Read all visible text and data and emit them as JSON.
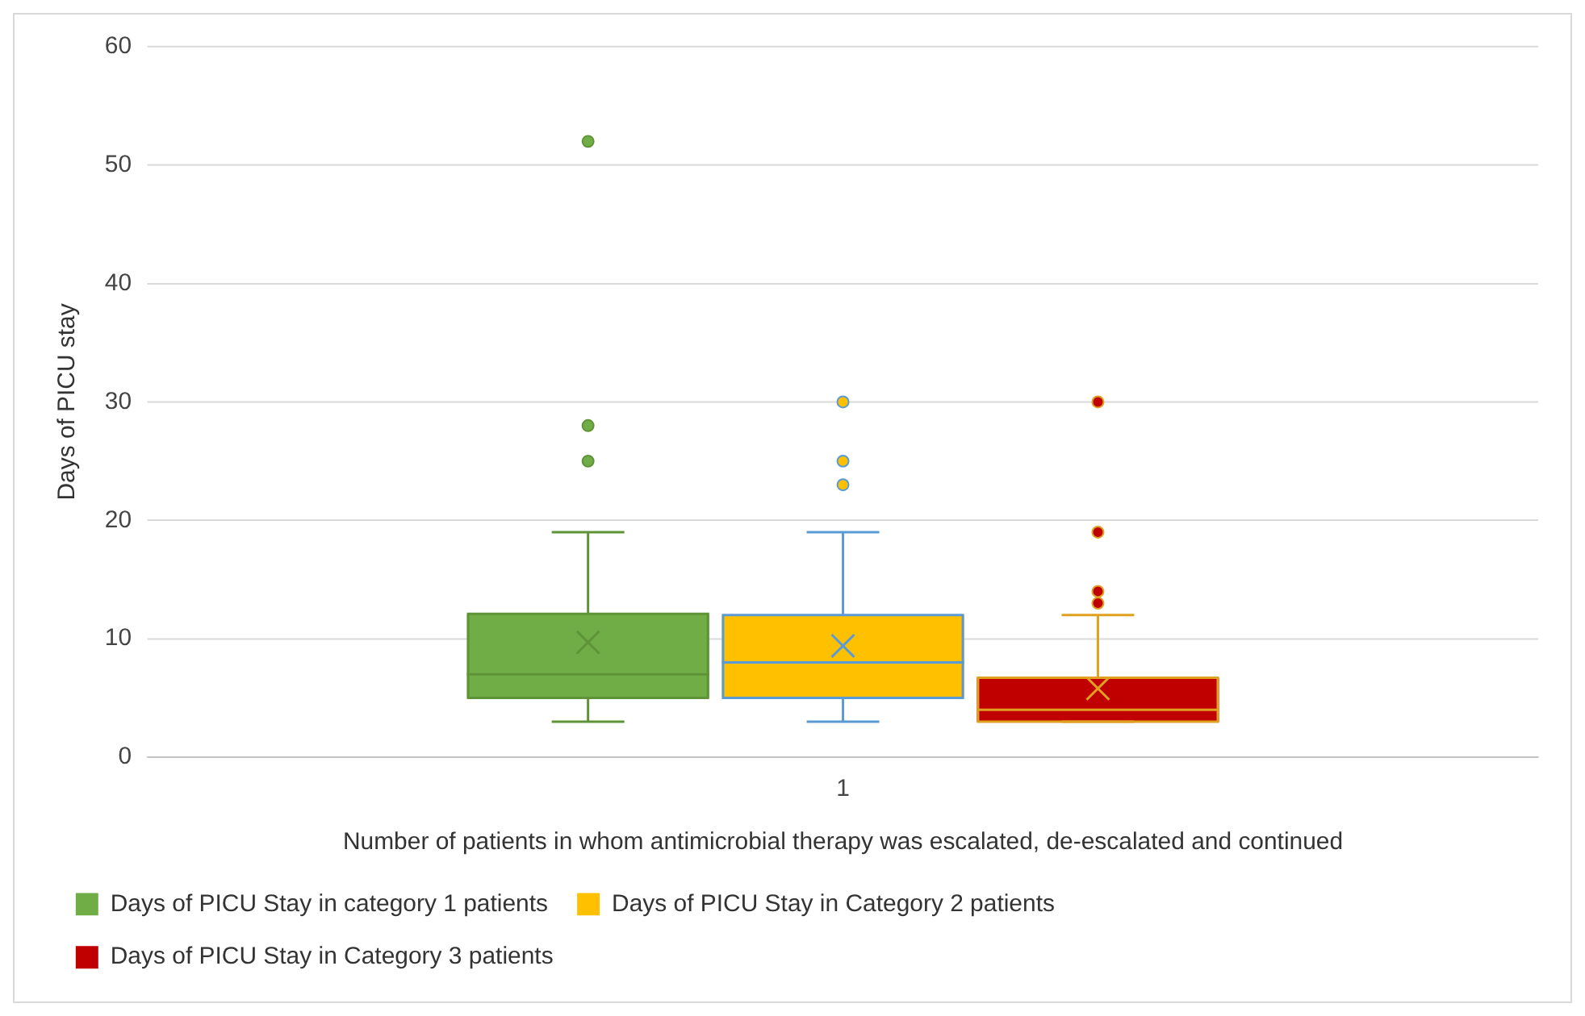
{
  "chart_data": {
    "type": "box",
    "categories": [
      "1"
    ],
    "xlabel": "Number of patients in whom antimicrobial therapy was escalated, de-escalated and continued",
    "ylabel": "Days of PICU stay",
    "ylim": [
      0,
      60
    ],
    "yticks": [
      0,
      10,
      20,
      30,
      40,
      50,
      60
    ],
    "grid": "y",
    "legend": "bottom",
    "series": [
      {
        "name": "Days of PICU Stay in category 1 patients",
        "color": "#70ad47",
        "boxes": [
          {
            "low": 3,
            "q1": 5,
            "median": 7,
            "q3": 12.1,
            "high": 19,
            "mean": 9.7,
            "outliers": [
              52,
              28,
              25
            ]
          }
        ]
      },
      {
        "name": "Days of PICU Stay in Category 2 patients",
        "color": "#ffc000",
        "boxes": [
          {
            "low": 3,
            "q1": 5,
            "median": 8,
            "q3": 12,
            "high": 19,
            "mean": 9.4,
            "outliers": [
              30,
              25,
              23
            ]
          }
        ]
      },
      {
        "name": "Days of PICU Stay in Category 3 patients",
        "color": "#c00000",
        "boxes": [
          {
            "low": 3,
            "q1": 3,
            "median": 4,
            "q3": 6.7,
            "high": 12,
            "mean": 5.8,
            "outliers": [
              30,
              19,
              14,
              13
            ]
          }
        ]
      }
    ]
  }
}
